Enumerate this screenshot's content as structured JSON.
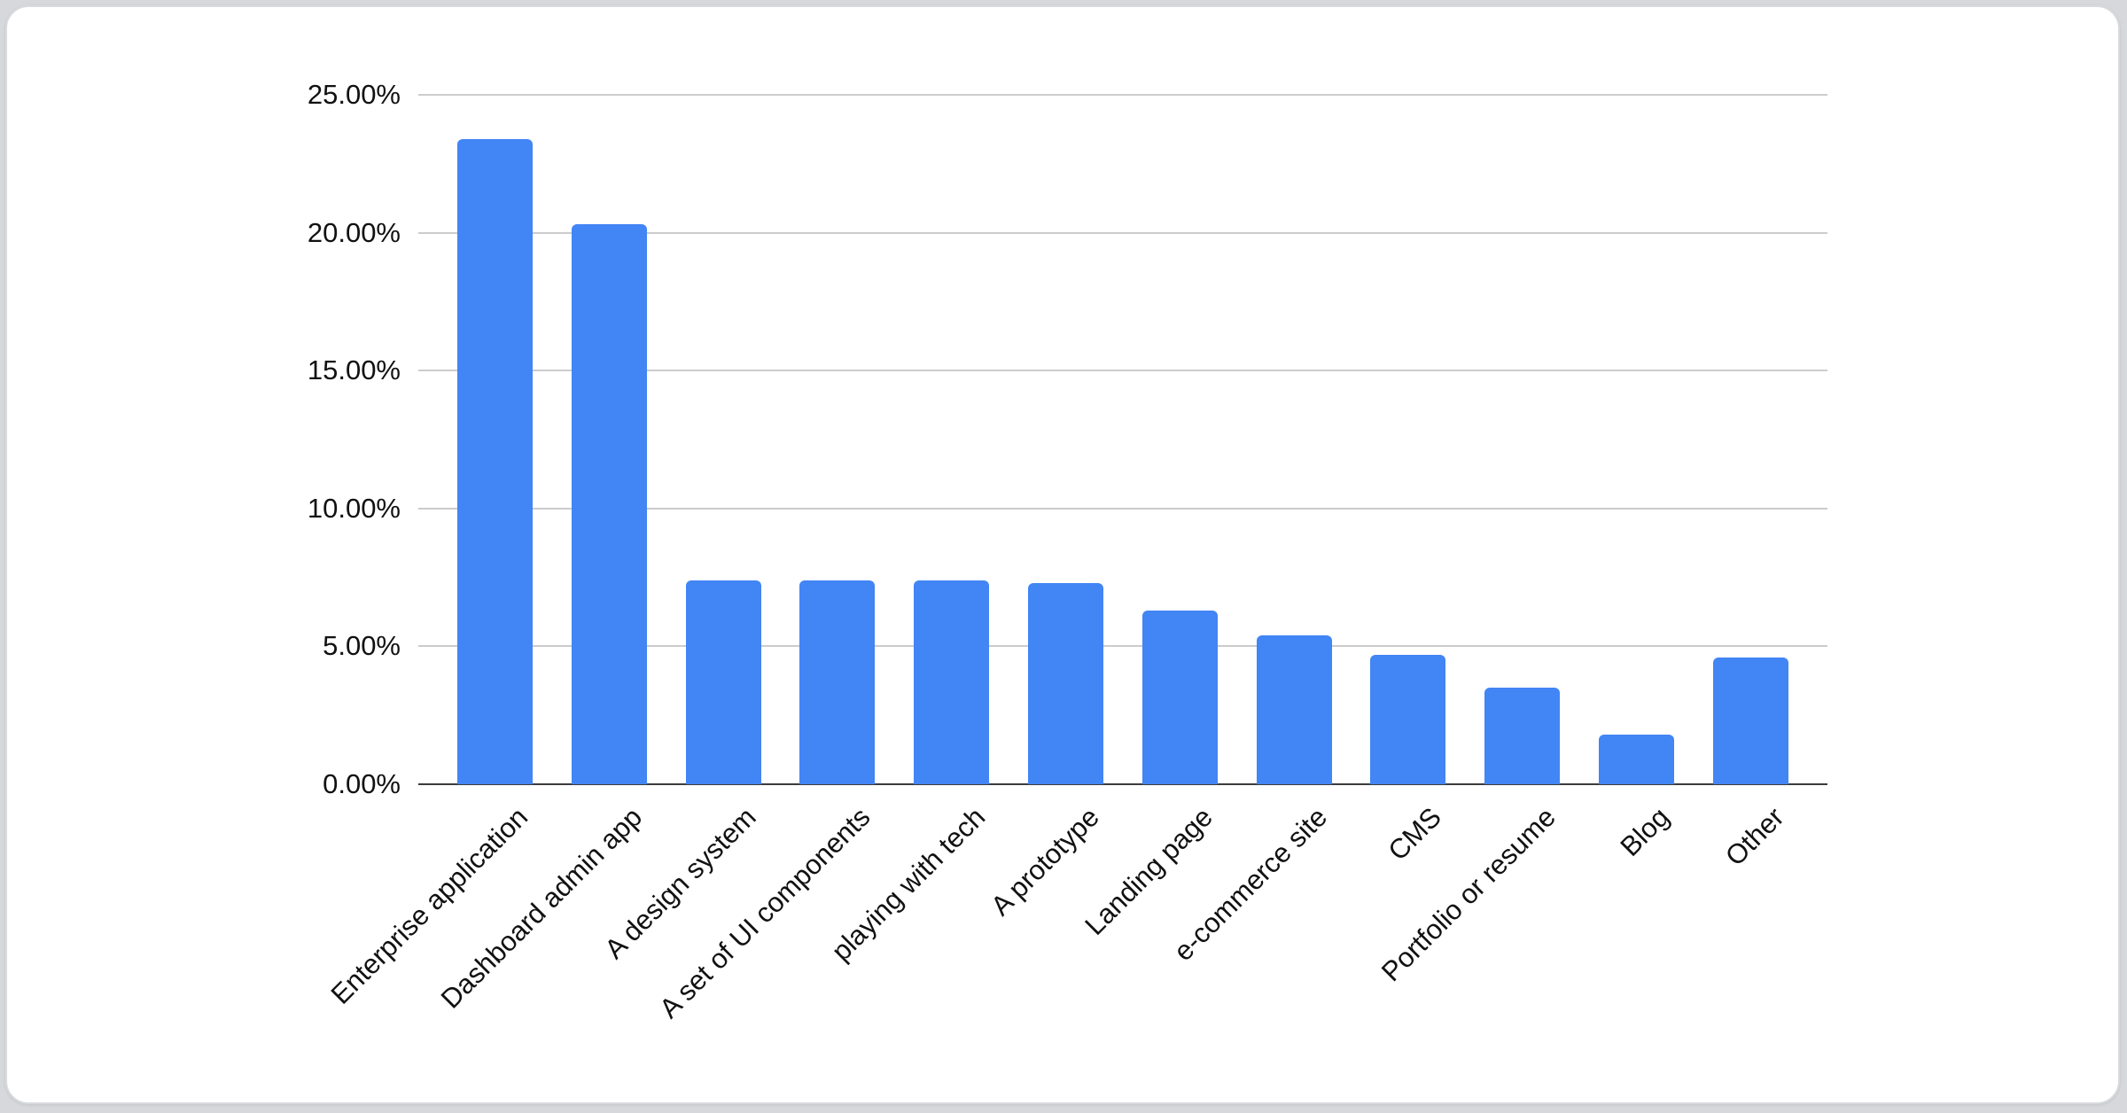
{
  "page": {
    "background_color": "#d6d8db",
    "card_background": "#ffffff",
    "card_border_color": "#d8dade"
  },
  "chart_data": {
    "type": "bar",
    "title": "",
    "xlabel": "",
    "ylabel": "",
    "categories": [
      "Enterprise application",
      "Dashboard admin app",
      "A design system",
      "A set of UI components",
      "playing with tech",
      "A prototype",
      "Landing page",
      "e-commerce site",
      "CMS",
      "Portfolio or resume",
      "Blog",
      "Other"
    ],
    "values": [
      23.4,
      20.3,
      7.4,
      7.4,
      7.4,
      7.3,
      6.3,
      5.4,
      4.7,
      3.5,
      1.8,
      4.6
    ],
    "value_unit": "%",
    "ylim": [
      0,
      25
    ],
    "y_ticks": [
      {
        "value": 0,
        "label": "0.00%"
      },
      {
        "value": 5,
        "label": "5.00%"
      },
      {
        "value": 10,
        "label": "10.00%"
      },
      {
        "value": 15,
        "label": "15.00%"
      },
      {
        "value": 20,
        "label": "20.00%"
      },
      {
        "value": 25,
        "label": "25.00%"
      }
    ],
    "x_label_rotation_deg": 45,
    "grid": "horizontal",
    "legend_position": "none",
    "bar_color": "#4285f4",
    "gridline_color": "#cccccc",
    "axis_line_color": "#3c3c3c",
    "text_color": "#111111"
  }
}
